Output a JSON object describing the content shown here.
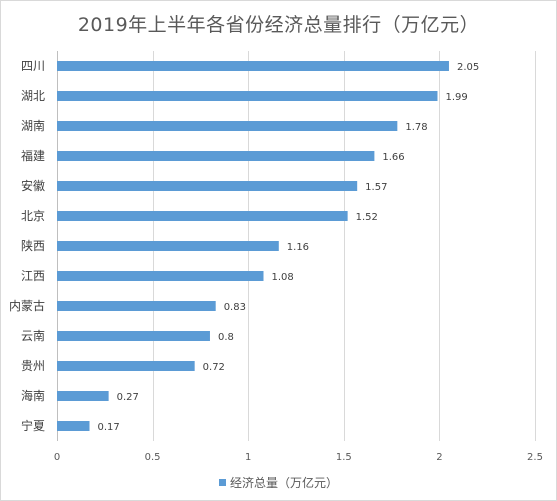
{
  "chart_data": {
    "type": "bar",
    "orientation": "horizontal",
    "title": "2019年上半年各省份经济总量排行（万亿元）",
    "categories": [
      "四川",
      "湖北",
      "湖南",
      "福建",
      "安徽",
      "北京",
      "陕西",
      "江西",
      "内蒙古",
      "云南",
      "贵州",
      "海南",
      "宁夏"
    ],
    "series": [
      {
        "name": "经济总量（万亿元）",
        "values": [
          2.05,
          1.99,
          1.78,
          1.66,
          1.57,
          1.52,
          1.16,
          1.08,
          0.83,
          0.8,
          0.72,
          0.27,
          0.17
        ],
        "labels": [
          "2.05",
          "1.99",
          "1.78",
          "1.66",
          "1.57",
          "1.52",
          "1.16",
          "1.08",
          "0.83",
          "0.8",
          "0.72",
          "0.27",
          "0.17"
        ]
      }
    ],
    "xlim": [
      0,
      2.5
    ],
    "xticks": [
      "0",
      "0.5",
      "1",
      "1.5",
      "2",
      "2.5"
    ],
    "grid": true,
    "legend_position": "bottom",
    "color": "#5b9bd5"
  }
}
